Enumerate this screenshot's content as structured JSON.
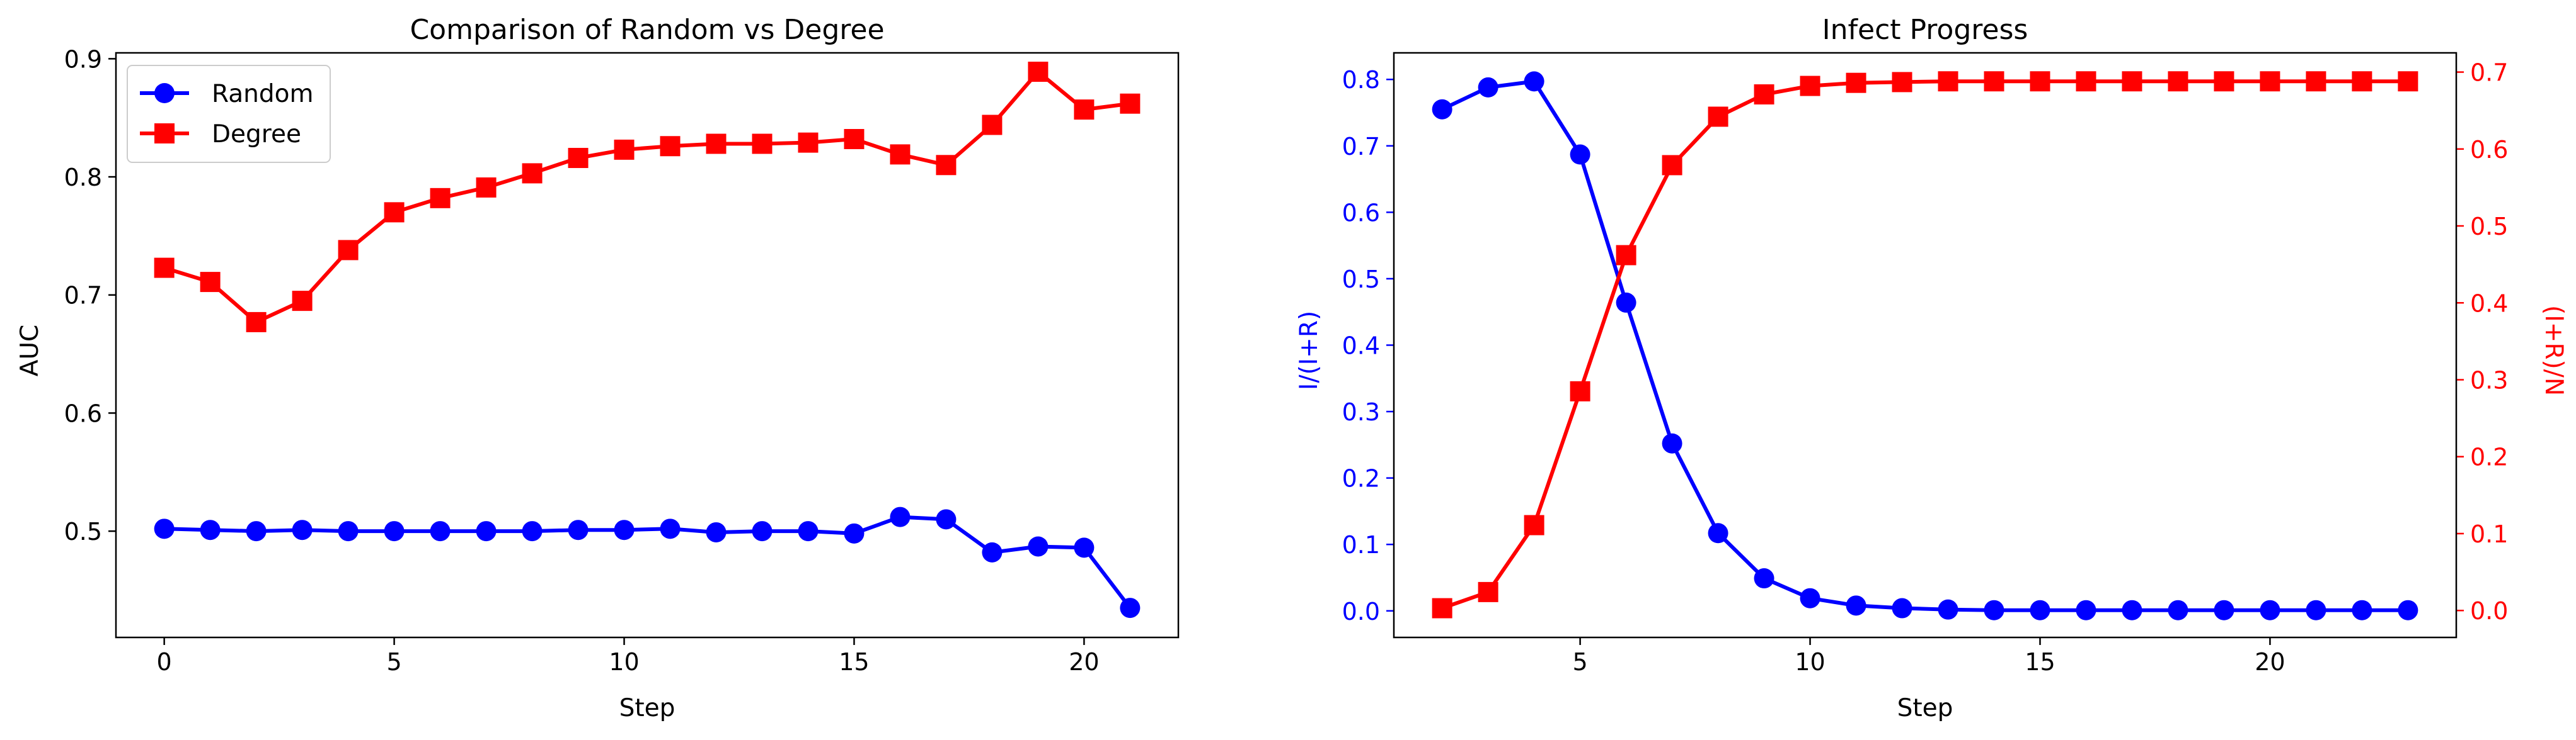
{
  "chart_data": [
    {
      "type": "line",
      "title": "Comparison of Random vs Degree",
      "xlabel": "Step",
      "ylabel": "AUC",
      "xlim": [
        -1.05,
        22.05
      ],
      "ylim": [
        0.41,
        0.905
      ],
      "xticks": [
        "0",
        "5",
        "10",
        "15",
        "20"
      ],
      "yticks": [
        "0.5",
        "0.6",
        "0.7",
        "0.8",
        "0.9"
      ],
      "legend_position": "upper-left",
      "grid": false,
      "series": [
        {
          "name": "Random",
          "color": "#0000ff",
          "marker": "circle",
          "x": [
            0,
            1,
            2,
            3,
            4,
            5,
            6,
            7,
            8,
            9,
            10,
            11,
            12,
            13,
            14,
            15,
            16,
            17,
            18,
            19,
            20,
            21
          ],
          "y": [
            0.502,
            0.501,
            0.5,
            0.501,
            0.5,
            0.5,
            0.5,
            0.5,
            0.5,
            0.501,
            0.501,
            0.502,
            0.499,
            0.5,
            0.5,
            0.498,
            0.512,
            0.51,
            0.482,
            0.487,
            0.486,
            0.435
          ]
        },
        {
          "name": "Degree",
          "color": "#ff0000",
          "marker": "square",
          "x": [
            0,
            1,
            2,
            3,
            4,
            5,
            6,
            7,
            8,
            9,
            10,
            11,
            12,
            13,
            14,
            15,
            16,
            17,
            18,
            19,
            20,
            21
          ],
          "y": [
            0.723,
            0.711,
            0.677,
            0.695,
            0.738,
            0.77,
            0.782,
            0.791,
            0.803,
            0.816,
            0.823,
            0.826,
            0.828,
            0.828,
            0.829,
            0.832,
            0.819,
            0.81,
            0.844,
            0.889,
            0.857,
            0.862
          ]
        }
      ]
    },
    {
      "type": "line",
      "title": "Infect Progress",
      "xlabel": "Step",
      "ylabel": "I/(I+R)",
      "ylabel_color": "#0000ff",
      "ylabel_right": "(I+R)/N",
      "ylabel_right_color": "#ff0000",
      "xlim": [
        0.95,
        24.05
      ],
      "ylim": [
        -0.04,
        0.84
      ],
      "ylim_right": [
        -0.035,
        0.725
      ],
      "xticks": [
        "5",
        "10",
        "15",
        "20"
      ],
      "yticks": [
        "0.0",
        "0.1",
        "0.2",
        "0.3",
        "0.4",
        "0.5",
        "0.6",
        "0.7",
        "0.8"
      ],
      "yticks_right": [
        "0.0",
        "0.1",
        "0.2",
        "0.3",
        "0.4",
        "0.5",
        "0.6",
        "0.7"
      ],
      "grid": false,
      "series": [
        {
          "axis": "left",
          "color": "#0000ff",
          "marker": "circle",
          "x": [
            2,
            3,
            4,
            5,
            6,
            7,
            8,
            9,
            10,
            11,
            12,
            13,
            14,
            15,
            16,
            17,
            18,
            19,
            20,
            21,
            22,
            23
          ],
          "y": [
            0.755,
            0.788,
            0.797,
            0.687,
            0.464,
            0.252,
            0.117,
            0.049,
            0.019,
            0.008,
            0.004,
            0.002,
            0.001,
            0.001,
            0.001,
            0.001,
            0.001,
            0.001,
            0.001,
            0.001,
            0.001,
            0.001
          ]
        },
        {
          "axis": "right",
          "color": "#ff0000",
          "marker": "square",
          "x": [
            2,
            3,
            4,
            5,
            6,
            7,
            8,
            9,
            10,
            11,
            12,
            13,
            14,
            15,
            16,
            17,
            18,
            19,
            20,
            21,
            22,
            23
          ],
          "y": [
            0.003,
            0.024,
            0.111,
            0.285,
            0.462,
            0.579,
            0.642,
            0.671,
            0.682,
            0.686,
            0.687,
            0.688,
            0.688,
            0.688,
            0.688,
            0.688,
            0.688,
            0.688,
            0.688,
            0.688,
            0.688,
            0.688
          ]
        }
      ]
    }
  ]
}
